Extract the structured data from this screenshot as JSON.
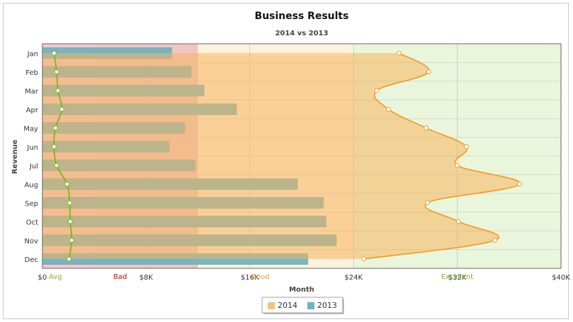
{
  "chart_data": {
    "type": "bar",
    "orientation": "horizontal",
    "title": "Business Results",
    "subtitle": "2014 vs 2013",
    "xlabel": "Month",
    "ylabel": "Revenue",
    "categories": [
      "Jan",
      "Feb",
      "Mar",
      "Apr",
      "May",
      "Jun",
      "Jul",
      "Aug",
      "Sep",
      "Oct",
      "Nov",
      "Dec"
    ],
    "xlim": [
      0,
      40000
    ],
    "x_ticks": [
      0,
      8000,
      16000,
      24000,
      32000,
      40000
    ],
    "x_tick_labels": [
      "$0",
      "$8K",
      "$16K",
      "$24K",
      "$32K",
      "$40K"
    ],
    "series": [
      {
        "name": "2014",
        "type": "area-spline",
        "color": "#f5c27a",
        "line_color": "#f0a030",
        "values": [
          27500,
          29800,
          25800,
          26700,
          29600,
          32700,
          32000,
          36800,
          29700,
          32100,
          34900,
          24800
        ]
      },
      {
        "name": "2013",
        "type": "bar",
        "color": "#6fb3c0",
        "values": [
          10000,
          11500,
          12500,
          15000,
          11000,
          9800,
          11800,
          19700,
          21700,
          21900,
          22700,
          20500
        ]
      },
      {
        "name": "Avg",
        "type": "spline",
        "color": "#7ab51d",
        "values": [
          900,
          1100,
          1200,
          1500,
          1000,
          900,
          1100,
          1900,
          2100,
          2150,
          2250,
          2050
        ]
      }
    ],
    "bands": [
      {
        "label": "Avg",
        "from": 0,
        "to": 4000,
        "color": "#f6c6cc",
        "label_color": "#7ab51d"
      },
      {
        "label": "Bad",
        "from": 4000,
        "to": 12000,
        "color": "#f2c4c4",
        "label_color": "#d40000"
      },
      {
        "label": "Good",
        "from": 12000,
        "to": 24000,
        "color": "#fff2dc",
        "label_color": "#e8a020"
      },
      {
        "label": "Excellent",
        "from": 24000,
        "to": 40000,
        "color": "#eaf6dc",
        "label_color": "#7ab51d"
      }
    ],
    "band_label_positions": [
      1000,
      6000,
      16800,
      32000
    ],
    "legend": {
      "position": "bottom-center",
      "items": [
        "2014",
        "2013"
      ]
    },
    "grid": true
  }
}
